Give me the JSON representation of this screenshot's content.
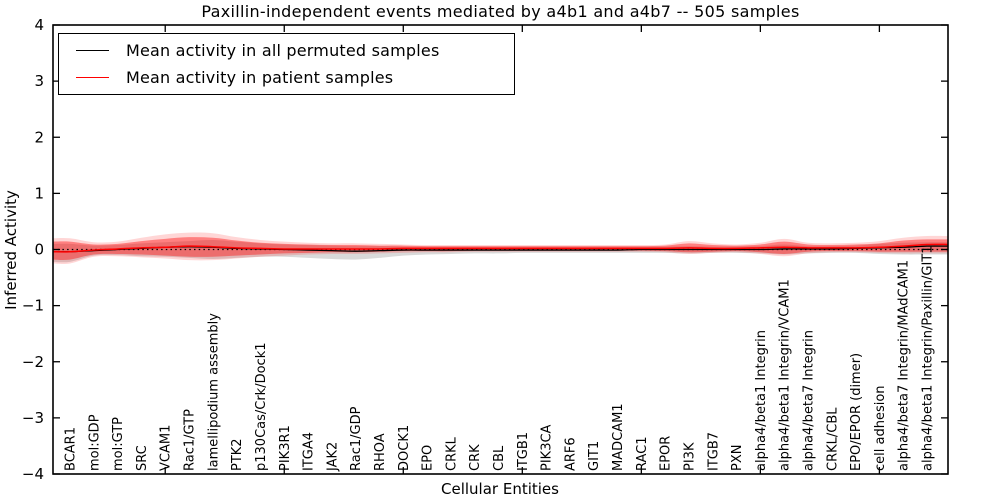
{
  "figure": {
    "title": "Paxillin-independent events mediated by a4b1 and a4b7 -- 505 samples",
    "xlabel": "Cellular Entities",
    "ylabel": "Inferred Activity"
  },
  "legend": {
    "items": [
      {
        "label": "Mean activity in all permuted samples",
        "color": "#000000"
      },
      {
        "label": "Mean activity in patient samples",
        "color": "#ff0000"
      }
    ]
  },
  "colors": {
    "frame": "#000000",
    "permuted_line": "#000000",
    "patient_line": "#ff0000",
    "permuted_band": "rgba(0,0,0,0.15)",
    "patient_band_inner": "rgba(255,0,0,0.40)",
    "patient_band_outer": "rgba(255,0,0,0.16)",
    "zero_line": "#000000",
    "background": "#ffffff"
  },
  "chart_data": {
    "type": "line",
    "title": "Paxillin-independent events mediated by a4b1 and a4b7 -- 505 samples",
    "xlabel": "Cellular Entities",
    "ylabel": "Inferred Activity",
    "ylim": [
      -4,
      4
    ],
    "yticks": [
      4,
      3,
      2,
      1,
      0,
      -1,
      -2,
      -3,
      -4
    ],
    "y_tick_labels": [
      "4",
      "3",
      "2",
      "1",
      "0",
      "−1",
      "−2",
      "−3",
      "−4"
    ],
    "x_major_tick_indices": [
      4,
      9,
      14,
      19,
      24,
      29,
      34
    ],
    "grid": false,
    "legend_position": "upper left",
    "zero_line": {
      "y": 0,
      "style": "dotted"
    },
    "categories": [
      "BCAR1",
      "mol:GDP",
      "mol:GTP",
      "SRC",
      "VCAM1",
      "Rac1/GTP",
      "lamellipodium assembly",
      "PTK2",
      "p130Cas/Crk/Dock1",
      "PIK3R1",
      "ITGA4",
      "JAK2",
      "Rac1/GDP",
      "RHOA",
      "DOCK1",
      "EPO",
      "CRKL",
      "CRK",
      "CBL",
      "ITGB1",
      "PIK3CA",
      "ARF6",
      "GIT1",
      "MADCAM1",
      "RAC1",
      "EPOR",
      "PI3K",
      "ITGB7",
      "PXN",
      "alpha4/beta1 Integrin",
      "alpha4/beta1 Integrin/VCAM1",
      "alpha4/beta7 Integrin",
      "CRKL/CBL",
      "EPO/EPOR (dimer)",
      "cell adhesion",
      "alpha4/beta7 Integrin/MAdCAM1",
      "alpha4/beta1 Integrin/Paxillin/GIT1"
    ],
    "series": [
      {
        "name": "Mean activity in all permuted samples",
        "color": "#000000",
        "values": [
          -0.04,
          -0.02,
          0.0,
          0.02,
          0.04,
          0.05,
          0.04,
          0.02,
          0.01,
          0.0,
          -0.01,
          -0.02,
          -0.03,
          -0.02,
          -0.01,
          -0.01,
          -0.01,
          -0.01,
          -0.01,
          -0.01,
          -0.01,
          -0.01,
          -0.01,
          -0.01,
          0.0,
          0.0,
          0.0,
          0.0,
          0.0,
          0.0,
          0.01,
          0.01,
          0.01,
          0.02,
          0.03,
          0.04,
          0.06
        ]
      },
      {
        "name": "Mean activity in patient samples",
        "color": "#ff0000",
        "values": [
          -0.04,
          -0.01,
          0.01,
          0.03,
          0.04,
          0.06,
          0.05,
          0.03,
          0.02,
          0.01,
          0.01,
          0.01,
          0.01,
          0.01,
          0.02,
          0.02,
          0.02,
          0.02,
          0.02,
          0.02,
          0.02,
          0.02,
          0.02,
          0.02,
          0.02,
          0.02,
          0.03,
          0.02,
          0.02,
          0.03,
          0.04,
          0.03,
          0.03,
          0.03,
          0.04,
          0.06,
          0.09
        ]
      }
    ],
    "bands": [
      {
        "name": "permuted-range",
        "fill": "rgba(0,0,0,0.15)",
        "upper": [
          0.1,
          0.07,
          0.08,
          0.11,
          0.13,
          0.15,
          0.17,
          0.14,
          0.11,
          0.09,
          0.08,
          0.07,
          0.06,
          0.06,
          0.05,
          0.05,
          0.05,
          0.05,
          0.05,
          0.05,
          0.05,
          0.05,
          0.05,
          0.05,
          0.05,
          0.05,
          0.06,
          0.05,
          0.05,
          0.06,
          0.09,
          0.06,
          0.06,
          0.07,
          0.1,
          0.12,
          0.13
        ],
        "lower": [
          -0.22,
          -0.11,
          -0.1,
          -0.12,
          -0.13,
          -0.15,
          -0.17,
          -0.15,
          -0.13,
          -0.13,
          -0.15,
          -0.17,
          -0.18,
          -0.15,
          -0.11,
          -0.09,
          -0.08,
          -0.07,
          -0.07,
          -0.06,
          -0.06,
          -0.06,
          -0.06,
          -0.06,
          -0.06,
          -0.06,
          -0.07,
          -0.06,
          -0.06,
          -0.07,
          -0.09,
          -0.07,
          -0.06,
          -0.06,
          -0.08,
          -0.09,
          -0.09
        ]
      },
      {
        "name": "patient-range-outer",
        "fill": "rgba(255,0,0,0.16)",
        "upper": [
          0.2,
          0.13,
          0.14,
          0.21,
          0.27,
          0.3,
          0.29,
          0.22,
          0.17,
          0.14,
          0.12,
          0.11,
          0.11,
          0.1,
          0.09,
          0.08,
          0.08,
          0.08,
          0.08,
          0.08,
          0.08,
          0.08,
          0.08,
          0.08,
          0.08,
          0.09,
          0.15,
          0.11,
          0.09,
          0.12,
          0.19,
          0.12,
          0.11,
          0.12,
          0.15,
          0.21,
          0.24
        ],
        "lower": [
          -0.25,
          -0.13,
          -0.12,
          -0.14,
          -0.16,
          -0.19,
          -0.19,
          -0.16,
          -0.13,
          -0.11,
          -0.09,
          -0.08,
          -0.08,
          -0.07,
          -0.06,
          -0.05,
          -0.05,
          -0.04,
          -0.04,
          -0.04,
          -0.04,
          -0.04,
          -0.04,
          -0.04,
          -0.04,
          -0.05,
          -0.08,
          -0.06,
          -0.05,
          -0.08,
          -0.12,
          -0.07,
          -0.05,
          -0.05,
          -0.06,
          -0.07,
          -0.07
        ]
      },
      {
        "name": "patient-range-inner",
        "fill": "rgba(255,0,0,0.40)",
        "upper": [
          0.14,
          0.09,
          0.1,
          0.15,
          0.19,
          0.22,
          0.21,
          0.16,
          0.12,
          0.1,
          0.09,
          0.08,
          0.08,
          0.07,
          0.07,
          0.06,
          0.06,
          0.06,
          0.06,
          0.06,
          0.06,
          0.06,
          0.06,
          0.06,
          0.06,
          0.07,
          0.11,
          0.08,
          0.07,
          0.09,
          0.14,
          0.09,
          0.08,
          0.09,
          0.11,
          0.16,
          0.18
        ],
        "lower": [
          -0.18,
          -0.09,
          -0.08,
          -0.09,
          -0.11,
          -0.13,
          -0.13,
          -0.11,
          -0.09,
          -0.07,
          -0.06,
          -0.05,
          -0.05,
          -0.04,
          -0.03,
          -0.03,
          -0.03,
          -0.02,
          -0.02,
          -0.02,
          -0.02,
          -0.02,
          -0.02,
          -0.02,
          -0.02,
          -0.03,
          -0.05,
          -0.04,
          -0.03,
          -0.05,
          -0.08,
          -0.04,
          -0.03,
          -0.03,
          -0.04,
          -0.04,
          -0.04
        ]
      }
    ]
  }
}
